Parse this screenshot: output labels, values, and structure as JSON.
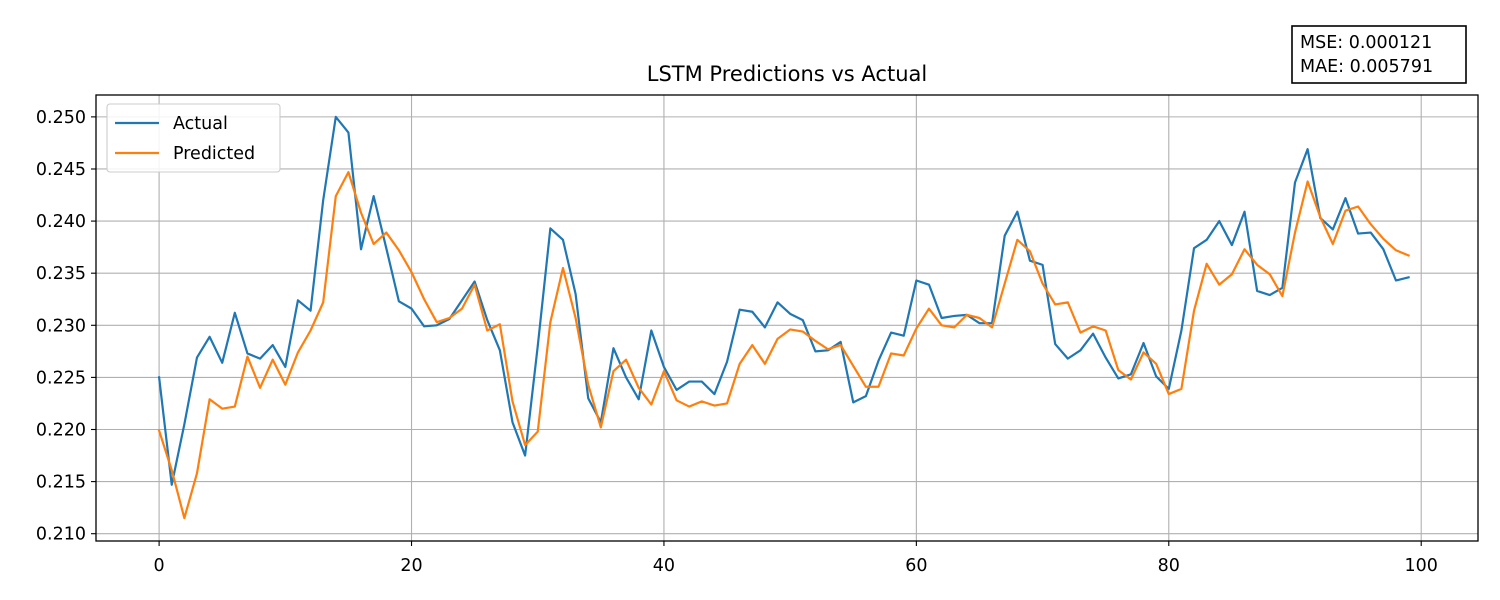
{
  "chart_data": {
    "type": "line",
    "title": "LSTM Predictions vs Actual",
    "xlabel": "",
    "ylabel": "",
    "xlim": [
      -5,
      104.5
    ],
    "ylim": [
      0.2093,
      0.2521
    ],
    "x_ticks": [
      0,
      20,
      40,
      60,
      80,
      100
    ],
    "x_tick_labels": [
      "0",
      "20",
      "40",
      "60",
      "80",
      "100"
    ],
    "y_ticks": [
      0.21,
      0.215,
      0.22,
      0.225,
      0.23,
      0.235,
      0.24,
      0.245,
      0.25
    ],
    "y_tick_labels": [
      "0.210",
      "0.215",
      "0.220",
      "0.225",
      "0.230",
      "0.235",
      "0.240",
      "0.245",
      "0.250"
    ],
    "grid": true,
    "legend": {
      "placement": "upper-left"
    },
    "metrics": [
      "MSE: 0.000121",
      "MAE: 0.005791"
    ],
    "metrics_placement": "top-right",
    "series": [
      {
        "name": "Actual",
        "color": "#1f77b4",
        "values": [
          0.225,
          0.2147,
          0.2205,
          0.2269,
          0.2289,
          0.2264,
          0.2312,
          0.2273,
          0.2268,
          0.2281,
          0.226,
          0.2324,
          0.2314,
          0.242,
          0.25,
          0.2485,
          0.2373,
          0.2424,
          0.2374,
          0.2323,
          0.2316,
          0.2299,
          0.23,
          0.2306,
          0.2324,
          0.2342,
          0.2305,
          0.2276,
          0.2207,
          0.2175,
          0.228,
          0.2393,
          0.2382,
          0.233,
          0.223,
          0.2207,
          0.2278,
          0.225,
          0.2229,
          0.2295,
          0.226,
          0.2238,
          0.2246,
          0.2246,
          0.2234,
          0.2265,
          0.2315,
          0.2313,
          0.2298,
          0.2322,
          0.2311,
          0.2305,
          0.2275,
          0.2276,
          0.2284,
          0.2226,
          0.2232,
          0.2266,
          0.2293,
          0.229,
          0.2343,
          0.2339,
          0.2307,
          0.2309,
          0.231,
          0.2302,
          0.2302,
          0.2386,
          0.2409,
          0.2362,
          0.2358,
          0.2282,
          0.2268,
          0.2276,
          0.2292,
          0.2269,
          0.2249,
          0.2253,
          0.2283,
          0.2251,
          0.2239,
          0.2295,
          0.2374,
          0.2382,
          0.24,
          0.2377,
          0.2409,
          0.2333,
          0.2329,
          0.2336,
          0.2437,
          0.2469,
          0.2403,
          0.2392,
          0.2422,
          0.2388,
          0.2389,
          0.2373,
          0.2343,
          0.2346
        ]
      },
      {
        "name": "Predicted",
        "color": "#ff7f0e",
        "values": [
          0.2199,
          0.2161,
          0.2115,
          0.2158,
          0.2229,
          0.222,
          0.2222,
          0.227,
          0.224,
          0.2267,
          0.2243,
          0.2274,
          0.2295,
          0.2322,
          0.2424,
          0.2447,
          0.2408,
          0.2378,
          0.2389,
          0.2372,
          0.2351,
          0.2325,
          0.2303,
          0.2307,
          0.2316,
          0.2339,
          0.2295,
          0.2301,
          0.2227,
          0.2185,
          0.2198,
          0.2303,
          0.2355,
          0.2307,
          0.2243,
          0.2202,
          0.2256,
          0.2267,
          0.224,
          0.2224,
          0.2256,
          0.2228,
          0.2222,
          0.2227,
          0.2223,
          0.2225,
          0.2263,
          0.2281,
          0.2263,
          0.2287,
          0.2296,
          0.2294,
          0.2285,
          0.2277,
          0.2281,
          0.2261,
          0.2241,
          0.2241,
          0.2273,
          0.2271,
          0.2297,
          0.2316,
          0.23,
          0.2298,
          0.231,
          0.2307,
          0.2298,
          0.234,
          0.2382,
          0.2371,
          0.234,
          0.232,
          0.2322,
          0.2293,
          0.2299,
          0.2295,
          0.2257,
          0.2248,
          0.2274,
          0.2263,
          0.2234,
          0.2239,
          0.2314,
          0.2359,
          0.2339,
          0.2349,
          0.2373,
          0.2358,
          0.2349,
          0.2328,
          0.2389,
          0.2438,
          0.2404,
          0.2378,
          0.241,
          0.2414,
          0.2397,
          0.2383,
          0.2372,
          0.2367
        ]
      }
    ]
  }
}
